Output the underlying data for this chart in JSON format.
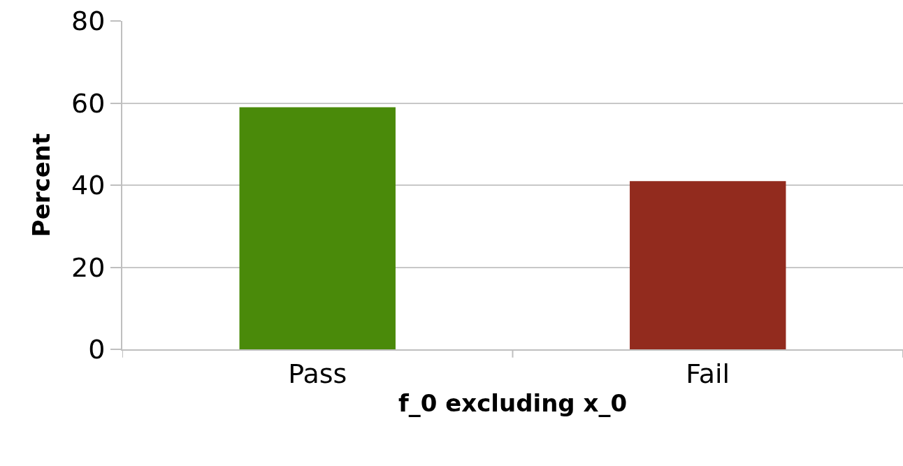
{
  "chart_data": {
    "type": "bar",
    "xlabel": "f_0 excluding x_0",
    "ylabel": "Percent",
    "categories": [
      "Pass",
      "Fail"
    ],
    "values": [
      59,
      41
    ],
    "colors": [
      "#4a8a0a",
      "#922b1e"
    ],
    "ylim": [
      0,
      80
    ],
    "yticks": [
      0,
      20,
      40,
      60,
      80
    ],
    "grid": "y"
  }
}
